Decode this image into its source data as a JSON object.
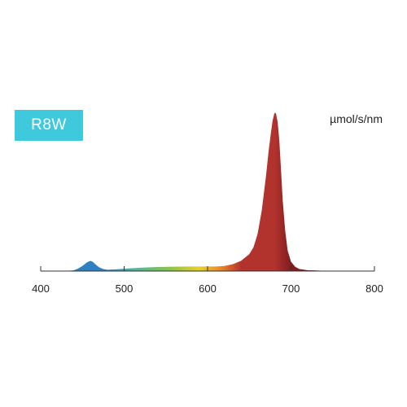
{
  "badge": {
    "label": "R8W",
    "color": "#3ec9dd"
  },
  "chart_data": {
    "type": "area",
    "title": "",
    "xlabel": "",
    "ylabel": "µmol/s/nm",
    "xlim": [
      400,
      800
    ],
    "ylim": [
      0,
      1.0
    ],
    "x_ticks": [
      400,
      500,
      600,
      700,
      800
    ],
    "grid": false,
    "legend": "none",
    "series": [
      {
        "x": [
          430,
          440,
          445,
          450,
          455,
          458,
          460,
          463,
          466,
          470,
          475,
          480,
          490,
          500,
          520,
          540,
          560,
          580,
          600,
          610,
          620,
          630,
          640,
          650,
          655,
          660,
          665,
          670,
          673,
          676,
          678,
          680,
          681,
          682,
          684,
          686,
          688,
          690,
          693,
          696,
          700,
          705,
          710,
          720,
          740,
          760,
          780,
          800
        ],
        "y": [
          0.0,
          0.005,
          0.015,
          0.03,
          0.05,
          0.058,
          0.06,
          0.052,
          0.038,
          0.022,
          0.012,
          0.008,
          0.01,
          0.014,
          0.02,
          0.024,
          0.026,
          0.027,
          0.027,
          0.027,
          0.03,
          0.04,
          0.06,
          0.1,
          0.14,
          0.22,
          0.36,
          0.56,
          0.7,
          0.82,
          0.89,
          0.93,
          0.935,
          0.93,
          0.88,
          0.77,
          0.6,
          0.42,
          0.24,
          0.12,
          0.055,
          0.025,
          0.012,
          0.005,
          0.002,
          0.001,
          0.0,
          0.0
        ]
      }
    ],
    "colors": {
      "blue": "#2f7fc3",
      "teal": "#4bb3a3",
      "green": "#8bc34a",
      "yellow": "#e5d12a",
      "orange": "#e98a2a",
      "red": "#b2332e",
      "dark_red": "#7f1d1d"
    }
  }
}
